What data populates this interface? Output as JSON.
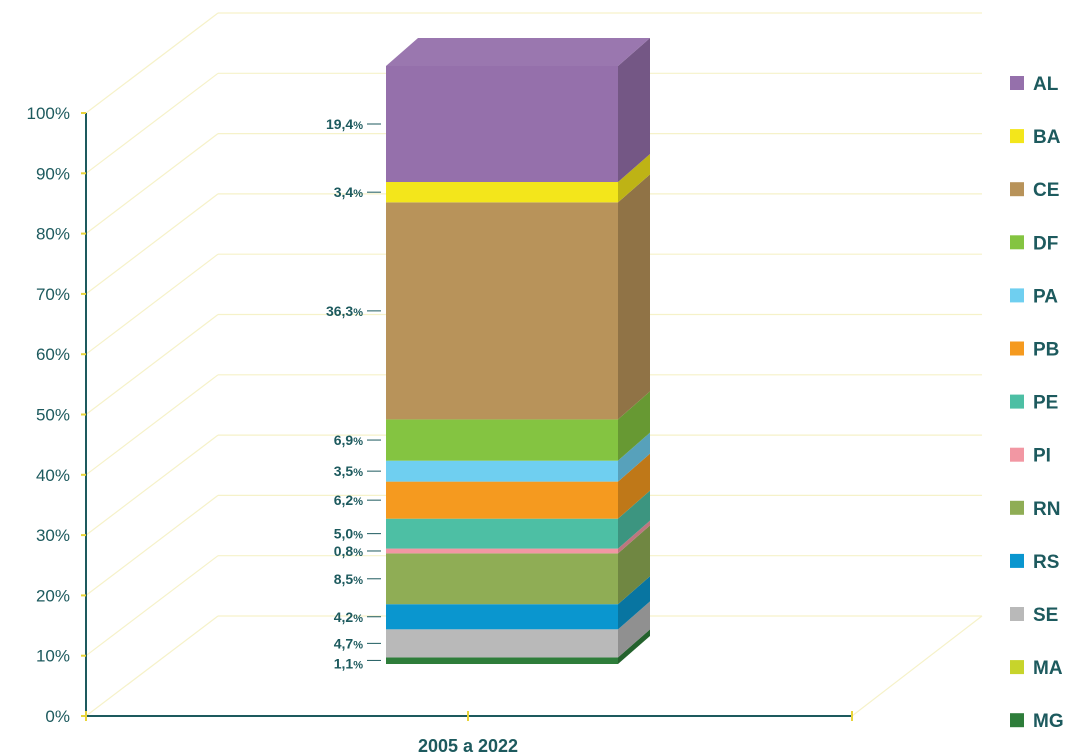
{
  "chart_data": {
    "type": "bar",
    "stacked": true,
    "three_d": true,
    "categories": [
      "2005 a 2022"
    ],
    "ylim": [
      0,
      100
    ],
    "yticks": [
      "0%",
      "10%",
      "20%",
      "30%",
      "40%",
      "50%",
      "60%",
      "70%",
      "80%",
      "90%",
      "100%"
    ],
    "legend_position": "right",
    "grid": true,
    "series": [
      {
        "name": "MG",
        "value": 1.1,
        "label": "1,1",
        "color": "#2e7d3a"
      },
      {
        "name": "SE",
        "value": 4.7,
        "label": "4,7",
        "color": "#b9b9b9"
      },
      {
        "name": "RS",
        "value": 4.2,
        "label": "4,2",
        "color": "#0a96cf"
      },
      {
        "name": "RN",
        "value": 8.5,
        "label": "8,5",
        "color": "#8fad55"
      },
      {
        "name": "PI",
        "value": 0.8,
        "label": "0,8",
        "color": "#f297a3"
      },
      {
        "name": "PE",
        "value": 5.0,
        "label": "5,0",
        "color": "#4dbfa4"
      },
      {
        "name": "PB",
        "value": 6.2,
        "label": "6,2",
        "color": "#f59a1f"
      },
      {
        "name": "PA",
        "value": 3.5,
        "label": "3,5",
        "color": "#6fcff0"
      },
      {
        "name": "DF",
        "value": 6.9,
        "label": "6,9",
        "color": "#84c441"
      },
      {
        "name": "CE",
        "value": 36.3,
        "label": "36,3",
        "color": "#b8935a"
      },
      {
        "name": "BA",
        "value": 3.4,
        "label": "3,4",
        "color": "#f3e61b"
      },
      {
        "name": "AL",
        "value": 19.4,
        "label": "19,4",
        "color": "#9570ab"
      }
    ],
    "legend_order": [
      "AL",
      "BA",
      "CE",
      "DF",
      "PA",
      "PB",
      "PE",
      "PI",
      "RN",
      "RS",
      "SE",
      "MA",
      "MG"
    ],
    "legend_colors": {
      "AL": "#9570ab",
      "BA": "#f3e61b",
      "CE": "#b8935a",
      "DF": "#84c441",
      "PA": "#6fcff0",
      "PB": "#f59a1f",
      "PE": "#4dbfa4",
      "PI": "#f297a3",
      "RN": "#8fad55",
      "RS": "#0a96cf",
      "SE": "#b9b9b9",
      "MA": "#c7d42b",
      "MG": "#2e7d3a"
    }
  }
}
